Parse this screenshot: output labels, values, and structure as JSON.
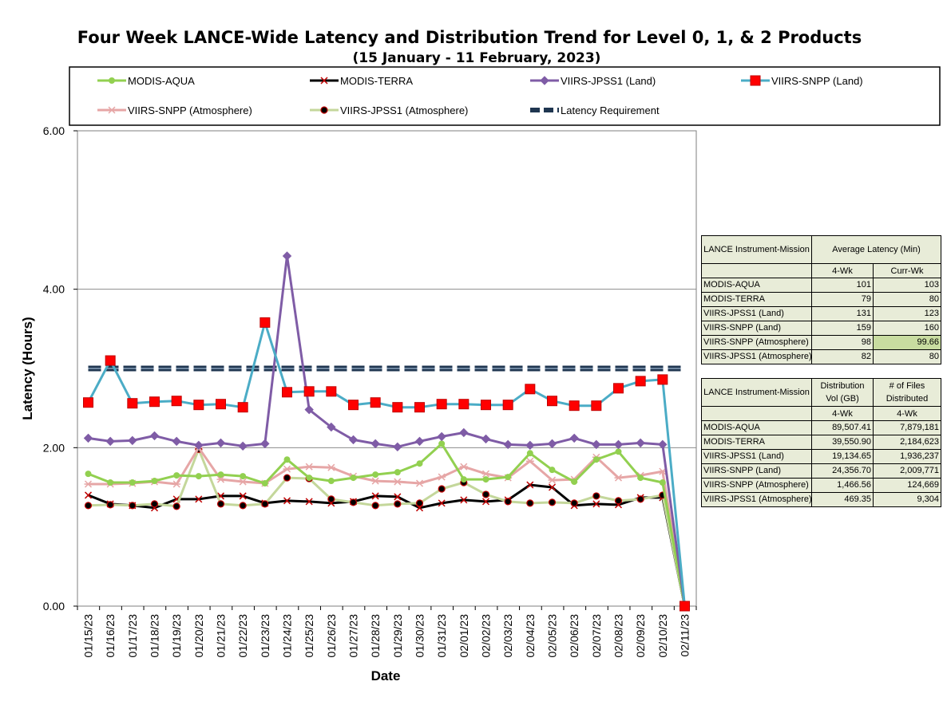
{
  "chart_data": {
    "type": "line",
    "title": "Four Week LANCE-Wide Latency and Distribution Trend for Level 0, 1, & 2 Products",
    "subtitle": "(15  January   - 11  February,  2023)",
    "xlabel": "Date",
    "ylabel": "Latency (Hours)",
    "ylim": [
      0,
      6
    ],
    "yticks": [
      "0.00",
      "2.00",
      "4.00",
      "6.00"
    ],
    "grid": true,
    "legend_placement": "top",
    "categories": [
      "01/15/23",
      "01/16/23",
      "01/17/23",
      "01/18/23",
      "01/19/23",
      "01/20/23",
      "01/21/23",
      "01/22/23",
      "01/23/23",
      "01/24/23",
      "01/25/23",
      "01/26/23",
      "01/27/23",
      "01/28/23",
      "01/29/23",
      "01/30/23",
      "01/31/23",
      "02/01/23",
      "02/02/23",
      "02/03/23",
      "02/04/23",
      "02/05/23",
      "02/06/23",
      "02/07/23",
      "02/08/23",
      "02/09/23",
      "02/10/23",
      "02/11/23"
    ],
    "latency_requirement": 3.0,
    "series": [
      {
        "name": "MODIS-AQUA",
        "color": "#92d050",
        "marker": "circle",
        "values": [
          1.67,
          1.56,
          1.56,
          1.58,
          1.65,
          1.64,
          1.66,
          1.64,
          1.55,
          1.85,
          1.62,
          1.58,
          1.62,
          1.66,
          1.69,
          1.8,
          2.05,
          1.6,
          1.6,
          1.63,
          1.93,
          1.72,
          1.57,
          1.85,
          1.95,
          1.62,
          1.56,
          0.0
        ]
      },
      {
        "name": "MODIS-TERRA",
        "color": "#000000",
        "marker": "x",
        "values": [
          1.4,
          1.29,
          1.27,
          1.24,
          1.35,
          1.35,
          1.39,
          1.39,
          1.3,
          1.33,
          1.32,
          1.3,
          1.32,
          1.39,
          1.38,
          1.24,
          1.3,
          1.34,
          1.32,
          1.34,
          1.53,
          1.5,
          1.27,
          1.29,
          1.28,
          1.37,
          1.37,
          0.0
        ]
      },
      {
        "name": "VIIRS-JPSS1 (Land)",
        "color": "#7f5ca6",
        "marker": "diamond",
        "values": [
          2.12,
          2.08,
          2.09,
          2.15,
          2.08,
          2.03,
          2.06,
          2.02,
          2.05,
          4.42,
          2.48,
          2.26,
          2.1,
          2.05,
          2.01,
          2.08,
          2.14,
          2.19,
          2.11,
          2.04,
          2.03,
          2.05,
          2.12,
          2.04,
          2.04,
          2.06,
          2.04,
          0.0
        ]
      },
      {
        "name": "VIIRS-SNPP (Land)",
        "color": "#4bacc6",
        "marker": "square",
        "values": [
          2.57,
          3.1,
          2.56,
          2.58,
          2.59,
          2.54,
          2.55,
          2.51,
          3.58,
          2.7,
          2.71,
          2.71,
          2.54,
          2.57,
          2.51,
          2.51,
          2.55,
          2.55,
          2.54,
          2.54,
          2.74,
          2.59,
          2.53,
          2.53,
          2.75,
          2.84,
          2.86,
          0.0
        ]
      },
      {
        "name": "VIIRS-SNPP (Atmosphere)",
        "color": "#e6a6a6",
        "marker": "asterisk",
        "values": [
          1.54,
          1.54,
          1.55,
          1.57,
          1.54,
          2.0,
          1.6,
          1.57,
          1.55,
          1.73,
          1.76,
          1.75,
          1.64,
          1.58,
          1.57,
          1.55,
          1.63,
          1.76,
          1.67,
          1.62,
          1.83,
          1.59,
          1.6,
          1.88,
          1.62,
          1.65,
          1.7,
          0.0
        ]
      },
      {
        "name": "VIIRS-JPSS1 (Atmosphere)",
        "color": "#c4d79b",
        "marker": "dot",
        "values": [
          1.27,
          1.28,
          1.27,
          1.29,
          1.26,
          1.98,
          1.29,
          1.27,
          1.29,
          1.62,
          1.61,
          1.35,
          1.31,
          1.27,
          1.29,
          1.3,
          1.48,
          1.56,
          1.41,
          1.32,
          1.3,
          1.31,
          1.3,
          1.39,
          1.33,
          1.35,
          1.4,
          0.0
        ]
      },
      {
        "name": "Latency Requirement",
        "color": "#1f3650",
        "marker": "none",
        "dashed": true,
        "values": [
          3.0,
          3.0,
          3.0,
          3.0,
          3.0,
          3.0,
          3.0,
          3.0,
          3.0,
          3.0,
          3.0,
          3.0,
          3.0,
          3.0,
          3.0,
          3.0,
          3.0,
          3.0,
          3.0,
          3.0,
          3.0,
          3.0,
          3.0,
          3.0,
          3.0,
          3.0,
          3.0,
          3.0
        ]
      }
    ]
  },
  "latency_table": {
    "col1_header": "LANCE Instrument-Mission",
    "group_header": "Average Latency (Min)",
    "sub_headers": [
      "4-Wk",
      "Curr-Wk"
    ],
    "rows": [
      {
        "name": "MODIS-AQUA",
        "wk4": "101",
        "curr": "103"
      },
      {
        "name": "MODIS-TERRA",
        "wk4": "79",
        "curr": "80"
      },
      {
        "name": "VIIRS-JPSS1 (Land)",
        "wk4": "131",
        "curr": "123"
      },
      {
        "name": "VIIRS-SNPP (Land)",
        "wk4": "159",
        "curr": "160"
      },
      {
        "name": "VIIRS-SNPP (Atmosphere)",
        "wk4": "98",
        "curr": "99.66"
      },
      {
        "name": "VIIRS-JPSS1 (Atmosphere)",
        "wk4": "82",
        "curr": "80"
      }
    ]
  },
  "distribution_table": {
    "col1_header": "LANCE Instrument-Mission",
    "col2_header": "Distribution Vol (GB)",
    "col3_header": "# of Files Distributed",
    "sub_headers": [
      "4-Wk",
      "4-Wk"
    ],
    "rows": [
      {
        "name": "MODIS-AQUA",
        "vol": "89,507.41",
        "files": "7,879,181"
      },
      {
        "name": "MODIS-TERRA",
        "vol": "39,550.90",
        "files": "2,184,623"
      },
      {
        "name": "VIIRS-JPSS1 (Land)",
        "vol": "19,134.65",
        "files": "1,936,237"
      },
      {
        "name": "VIIRS-SNPP (Land)",
        "vol": "24,356.70",
        "files": "2,009,771"
      },
      {
        "name": "VIIRS-SNPP (Atmosphere)",
        "vol": "1,466.56",
        "files": "124,669"
      },
      {
        "name": "VIIRS-JPSS1 (Atmosphere)",
        "vol": "469.35",
        "files": "9,304"
      }
    ]
  }
}
